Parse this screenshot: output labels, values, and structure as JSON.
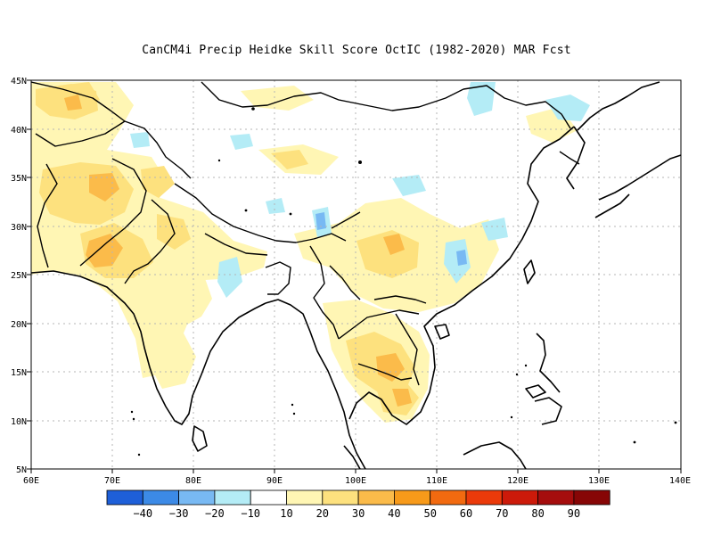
{
  "title": "CanCM4i Precip Heidke Skill Score OctIC (1982-2020) MAR Fcst",
  "map": {
    "lon_range": [
      60,
      140
    ],
    "lat_range": [
      5,
      45
    ],
    "lon_ticks": [
      "60E",
      "70E",
      "80E",
      "90E",
      "100E",
      "110E",
      "120E",
      "130E",
      "140E"
    ],
    "lat_ticks": [
      "5N",
      "10N",
      "15N",
      "20N",
      "25N",
      "30N",
      "35N",
      "40N",
      "45N"
    ],
    "gridlines": "dotted"
  },
  "colorbar": {
    "colors": [
      "#1e5fd8",
      "#3c8ae6",
      "#78b9f3",
      "#b4ecf6",
      "#ffffff",
      "#fff6b4",
      "#fde17e",
      "#fbbb4a",
      "#f79a1a",
      "#f26a10",
      "#eb3a0a",
      "#cc1a0a",
      "#a50d0d",
      "#870606"
    ],
    "labels": [
      "-40",
      "-30",
      "-20",
      "-10",
      "10",
      "20",
      "30",
      "40",
      "50",
      "60",
      "70",
      "80",
      "90"
    ]
  }
}
